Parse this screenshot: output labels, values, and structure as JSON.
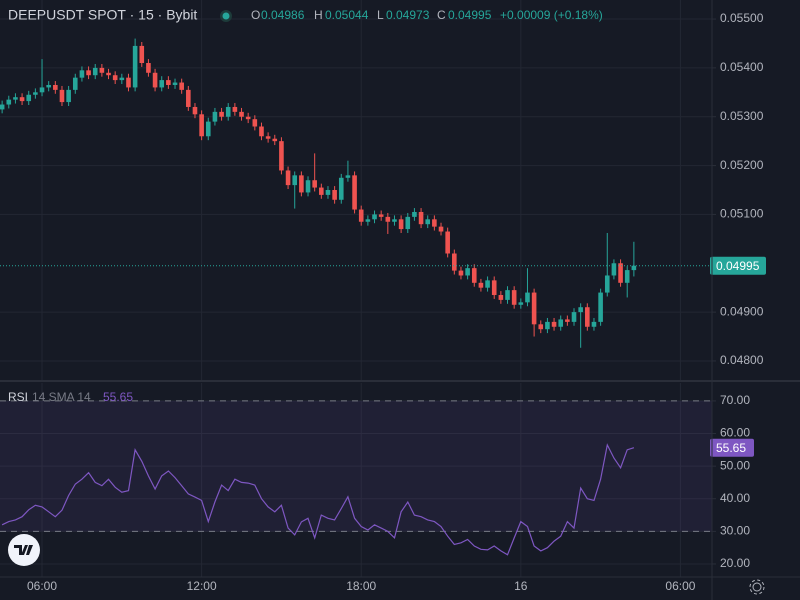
{
  "chart_data": [
    {
      "type": "candlestick",
      "title": "DEEPUSDT SPOT · 15 · Bybit",
      "ohlc_labels": [
        "O",
        "H",
        "L",
        "C"
      ],
      "change": "+0.00009 (+0.18%)",
      "up_color": "#26a69a",
      "down_color": "#ef5350",
      "grid": true,
      "xlim": [
        -0.32,
        106.75
      ],
      "ylim": [
        0.04761,
        0.05539
      ],
      "yticks": [
        {
          "value": 0.055,
          "label": "0.05500"
        },
        {
          "value": 0.054,
          "label": "0.05400"
        },
        {
          "value": 0.053,
          "label": "0.05300"
        },
        {
          "value": 0.052,
          "label": "0.05200"
        },
        {
          "value": 0.051,
          "label": "0.05100"
        },
        {
          "value": 0.049,
          "label": "0.04900"
        },
        {
          "value": 0.048,
          "label": "0.04800"
        }
      ],
      "open": [
        0.05315,
        0.05325,
        0.05335,
        0.0534,
        0.05332,
        0.05345,
        0.0535,
        0.0536,
        0.05365,
        0.05355,
        0.0533,
        0.05355,
        0.0538,
        0.05395,
        0.05385,
        0.054,
        0.0539,
        0.05385,
        0.05375,
        0.0538,
        0.0536,
        0.05445,
        0.0541,
        0.0539,
        0.0536,
        0.05375,
        0.05365,
        0.0537,
        0.05355,
        0.0532,
        0.05305,
        0.0526,
        0.0529,
        0.0531,
        0.053,
        0.0532,
        0.0531,
        0.053,
        0.05295,
        0.0528,
        0.0526,
        0.05255,
        0.0525,
        0.0519,
        0.0516,
        0.0518,
        0.05145,
        0.0517,
        0.05155,
        0.0514,
        0.0515,
        0.0513,
        0.05175,
        0.0518,
        0.0511,
        0.05085,
        0.0509,
        0.051,
        0.05095,
        0.05085,
        0.0509,
        0.0507,
        0.05095,
        0.05105,
        0.0508,
        0.0509,
        0.05075,
        0.05065,
        0.0502,
        0.04985,
        0.04975,
        0.0499,
        0.0496,
        0.0495,
        0.04965,
        0.04935,
        0.04925,
        0.04945,
        0.04915,
        0.0492,
        0.0494,
        0.04875,
        0.04865,
        0.0488,
        0.0487,
        0.04885,
        0.0488,
        0.049,
        0.0491,
        0.0487,
        0.0488,
        0.0494,
        0.04975,
        0.05,
        0.0496,
        0.04986
      ],
      "high": [
        0.05333,
        0.05343,
        0.05348,
        0.05348,
        0.05353,
        0.05358,
        0.05418,
        0.05373,
        0.05373,
        0.05363,
        0.05363,
        0.05388,
        0.05403,
        0.05403,
        0.05408,
        0.05408,
        0.05398,
        0.05393,
        0.05388,
        0.05388,
        0.0546,
        0.05453,
        0.05418,
        0.05398,
        0.05383,
        0.05383,
        0.05378,
        0.05378,
        0.05363,
        0.05328,
        0.05313,
        0.05298,
        0.05318,
        0.05318,
        0.05328,
        0.05328,
        0.05318,
        0.05308,
        0.05303,
        0.05288,
        0.05268,
        0.05263,
        0.05258,
        0.05198,
        0.05188,
        0.05188,
        0.05178,
        0.05225,
        0.05163,
        0.05158,
        0.05158,
        0.05183,
        0.0521,
        0.05188,
        0.05118,
        0.05098,
        0.05108,
        0.05108,
        0.05103,
        0.05098,
        0.05098,
        0.05103,
        0.05113,
        0.05113,
        0.05098,
        0.05098,
        0.05083,
        0.05073,
        0.05028,
        0.04993,
        0.04998,
        0.04998,
        0.04968,
        0.04973,
        0.04973,
        0.04943,
        0.04953,
        0.04953,
        0.04928,
        0.0499,
        0.04948,
        0.04883,
        0.04888,
        0.04888,
        0.04893,
        0.04893,
        0.04908,
        0.04918,
        0.04918,
        0.04888,
        0.04948,
        0.05062,
        0.05008,
        0.05008,
        0.04994,
        0.05044
      ],
      "low": [
        0.05307,
        0.05317,
        0.05327,
        0.05324,
        0.05324,
        0.05337,
        0.05342,
        0.05352,
        0.05347,
        0.05322,
        0.05322,
        0.05347,
        0.05372,
        0.05377,
        0.05377,
        0.05382,
        0.05377,
        0.05367,
        0.05367,
        0.05352,
        0.05352,
        0.05402,
        0.05382,
        0.05352,
        0.05352,
        0.05357,
        0.05357,
        0.05347,
        0.05312,
        0.05297,
        0.05252,
        0.05252,
        0.05282,
        0.05292,
        0.05292,
        0.05302,
        0.05292,
        0.05287,
        0.05272,
        0.05252,
        0.05247,
        0.05242,
        0.05182,
        0.05152,
        0.05112,
        0.05137,
        0.05137,
        0.05147,
        0.05132,
        0.05132,
        0.05122,
        0.05122,
        0.05167,
        0.05102,
        0.05077,
        0.05077,
        0.05082,
        0.05087,
        0.0506,
        0.05077,
        0.05062,
        0.05062,
        0.05087,
        0.05072,
        0.05072,
        0.05067,
        0.05057,
        0.05012,
        0.04977,
        0.04967,
        0.04967,
        0.04952,
        0.04942,
        0.04942,
        0.04927,
        0.04917,
        0.04917,
        0.04907,
        0.04907,
        0.04912,
        0.0485,
        0.04857,
        0.04857,
        0.04862,
        0.04862,
        0.04872,
        0.04872,
        0.04827,
        0.04862,
        0.04862,
        0.04872,
        0.04932,
        0.04967,
        0.04952,
        0.0493,
        0.04973
      ],
      "close": [
        0.05325,
        0.05335,
        0.0534,
        0.05332,
        0.05345,
        0.0535,
        0.0536,
        0.05365,
        0.05355,
        0.0533,
        0.05355,
        0.0538,
        0.05395,
        0.05385,
        0.054,
        0.0539,
        0.05385,
        0.05375,
        0.0538,
        0.0536,
        0.05445,
        0.0541,
        0.0539,
        0.0536,
        0.05375,
        0.05365,
        0.0537,
        0.05355,
        0.0532,
        0.05305,
        0.0526,
        0.0529,
        0.0531,
        0.053,
        0.0532,
        0.0531,
        0.053,
        0.05295,
        0.0528,
        0.0526,
        0.05255,
        0.0525,
        0.0519,
        0.0516,
        0.0518,
        0.05145,
        0.0517,
        0.05155,
        0.0514,
        0.0515,
        0.0513,
        0.05175,
        0.0518,
        0.0511,
        0.05085,
        0.0509,
        0.051,
        0.05095,
        0.05085,
        0.0509,
        0.0507,
        0.05095,
        0.05105,
        0.0508,
        0.0509,
        0.05075,
        0.05065,
        0.0502,
        0.04985,
        0.04975,
        0.0499,
        0.0496,
        0.0495,
        0.04965,
        0.04935,
        0.04925,
        0.04945,
        0.04915,
        0.0492,
        0.0494,
        0.04875,
        0.04865,
        0.0488,
        0.0487,
        0.04885,
        0.0488,
        0.049,
        0.0491,
        0.0487,
        0.0488,
        0.0494,
        0.04975,
        0.05,
        0.0496,
        0.04986,
        0.04995
      ]
    },
    {
      "type": "line",
      "name": "RSI",
      "params": "14 SMA 14",
      "color": "#7e57c2",
      "bands": [
        30,
        70
      ],
      "grid": true,
      "xlim": [
        -0.32,
        106.75
      ],
      "ylim": [
        16,
        75.5
      ],
      "xticks": [
        {
          "value": 6,
          "label": "06:00"
        },
        {
          "value": 30,
          "label": "12:00"
        },
        {
          "value": 54,
          "label": "18:00"
        },
        {
          "value": 78,
          "label": "16"
        },
        {
          "value": 102,
          "label": "06:00"
        }
      ],
      "yticks": [
        {
          "value": 70,
          "label": "70.00"
        },
        {
          "value": 60,
          "label": "60.00"
        },
        {
          "value": 50,
          "label": "50.00"
        },
        {
          "value": 40,
          "label": "40.00"
        },
        {
          "value": 30,
          "label": "30.00"
        },
        {
          "value": 20,
          "label": "20.00"
        }
      ],
      "values": [
        32,
        33,
        33.5,
        34.5,
        36.6,
        38,
        37.5,
        36,
        34.5,
        36.5,
        41,
        44.5,
        46,
        48,
        45,
        44,
        46,
        43.5,
        42,
        42.5,
        55,
        51.5,
        47,
        43,
        47,
        48.5,
        46.5,
        44,
        41.5,
        40.5,
        39.5,
        33,
        39,
        44.2,
        42.5,
        46,
        45,
        44.8,
        44.2,
        40,
        37.5,
        36,
        38,
        31,
        28.9,
        32.9,
        34,
        28,
        35,
        34,
        33.5,
        37,
        40.6,
        34,
        31.5,
        30.4,
        32,
        31,
        30,
        28,
        36,
        39,
        35,
        34.5,
        33.5,
        33,
        31.5,
        28.5,
        26,
        26.5,
        27.5,
        25.5,
        24.5,
        24.3,
        25.5,
        24,
        22.8,
        28,
        33,
        31.5,
        25.5,
        24,
        25,
        27,
        28.5,
        33,
        31,
        43.3,
        40,
        39.5,
        46,
        56.5,
        52.5,
        49.5,
        55,
        55.65
      ]
    }
  ]
}
